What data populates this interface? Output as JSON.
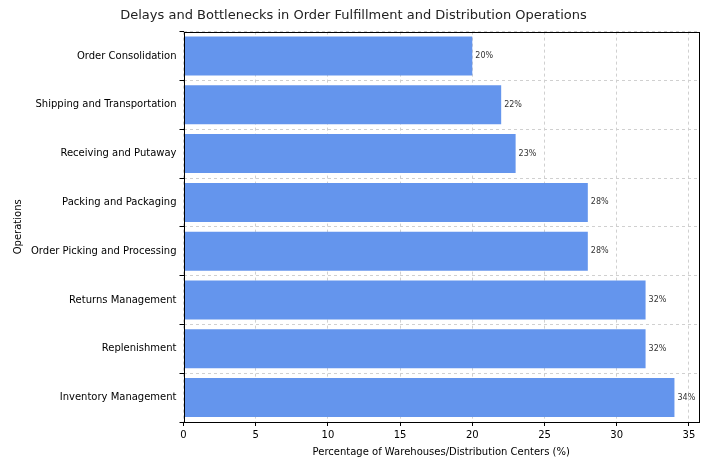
{
  "chart_data": {
    "type": "bar",
    "orientation": "horizontal",
    "title": "Delays and Bottlenecks in Order Fulfillment and Distribution Operations",
    "x_label": "Percentage of Warehouses/Distribution Centers (%)",
    "y_label": "Operations",
    "categories": [
      "Order Consolidation",
      "Shipping and Transportation",
      "Receiving and Putaway",
      "Packing and Packaging",
      "Order Picking and Processing",
      "Returns Management",
      "Replenishment",
      "Inventory Management"
    ],
    "values": [
      20,
      22,
      23,
      28,
      28,
      32,
      32,
      34
    ],
    "value_labels": [
      "20%",
      "22%",
      "23%",
      "28%",
      "28%",
      "32%",
      "32%",
      "34%"
    ],
    "data_labels": true,
    "color": "#6495ed",
    "xlim": [
      0,
      35.7
    ],
    "xticks": [
      0,
      5,
      10,
      15,
      20,
      25,
      30,
      35
    ],
    "grid": true
  }
}
